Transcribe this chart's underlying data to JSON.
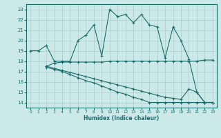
{
  "xlabel": "Humidex (Indice chaleur)",
  "xlim": [
    -0.5,
    23.5
  ],
  "ylim": [
    13.5,
    23.5
  ],
  "yticks": [
    14,
    15,
    16,
    17,
    18,
    19,
    20,
    21,
    22,
    23
  ],
  "xticks": [
    0,
    1,
    2,
    3,
    4,
    5,
    6,
    7,
    8,
    9,
    10,
    11,
    12,
    13,
    14,
    15,
    16,
    17,
    18,
    19,
    20,
    21,
    22,
    23
  ],
  "bg_color": "#cce9e9",
  "grid_color": "#aacccc",
  "line_color": "#1a6b6b",
  "line1_x": [
    0,
    1,
    2,
    3,
    4,
    5,
    6,
    7,
    8,
    9,
    10,
    11,
    12,
    13,
    14,
    15,
    16,
    17,
    18,
    19,
    20,
    21,
    22,
    23
  ],
  "line1_y": [
    19,
    19,
    19.5,
    18,
    18,
    18,
    20,
    20.5,
    21.5,
    18.5,
    23,
    22.3,
    22.5,
    21.7,
    22.5,
    21.5,
    21.3,
    18.3,
    21.3,
    20,
    18.2,
    15,
    14,
    14
  ],
  "line2_x": [
    2,
    3,
    4,
    5,
    6,
    7,
    8,
    9,
    10,
    11,
    12,
    13,
    14,
    15,
    16,
    17,
    18,
    19,
    20,
    21,
    22,
    23
  ],
  "line2_y": [
    17.5,
    17.8,
    17.9,
    17.9,
    17.9,
    17.9,
    17.9,
    17.9,
    18.0,
    18.0,
    18.0,
    18.0,
    18.0,
    18.0,
    18.0,
    18.0,
    18.0,
    18.0,
    18.0,
    18.0,
    18.1,
    18.1
  ],
  "line3_x": [
    2,
    3,
    4,
    5,
    6,
    7,
    8,
    9,
    10,
    11,
    12,
    13,
    14,
    15,
    16,
    17,
    18,
    19,
    20,
    21,
    22,
    23
  ],
  "line3_y": [
    17.5,
    17.3,
    17.1,
    16.9,
    16.7,
    16.5,
    16.3,
    16.1,
    15.9,
    15.7,
    15.5,
    15.3,
    15.1,
    14.9,
    14.7,
    14.5,
    14.4,
    14.3,
    15.3,
    15.0,
    14.0,
    14.0
  ],
  "line4_x": [
    2,
    3,
    4,
    5,
    6,
    7,
    8,
    9,
    10,
    11,
    12,
    13,
    14,
    15,
    16,
    17,
    18,
    19,
    20,
    21,
    22,
    23
  ],
  "line4_y": [
    17.4,
    17.2,
    17.0,
    16.7,
    16.4,
    16.1,
    15.9,
    15.6,
    15.3,
    15.0,
    14.8,
    14.5,
    14.3,
    14.0,
    14.0,
    14.0,
    14.0,
    14.0,
    14.0,
    14.0,
    14.0,
    14.0
  ]
}
